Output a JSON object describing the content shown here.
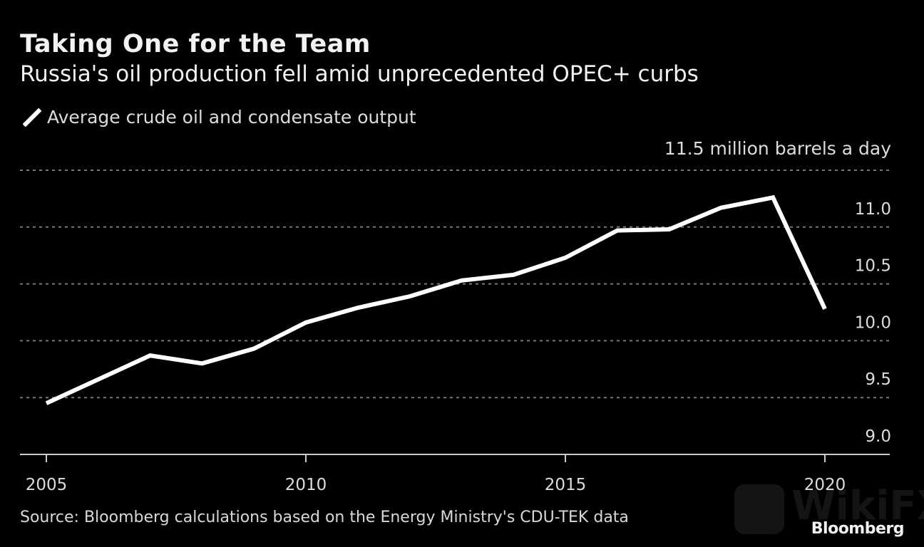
{
  "chart_data": {
    "type": "line",
    "title": "Taking One for the Team",
    "subtitle": "Russia's oil production fell amid unprecedented OPEC+ curbs",
    "legend": [
      {
        "label": "Average crude oil and condensate output",
        "color": "#ffffff"
      }
    ],
    "ylabel": "11.5 million barrels a day",
    "xlabel": "",
    "x": [
      2005,
      2006,
      2007,
      2008,
      2009,
      2010,
      2011,
      2012,
      2013,
      2014,
      2015,
      2016,
      2017,
      2018,
      2019,
      2020
    ],
    "series": [
      {
        "name": "Average crude oil and condensate output",
        "values": [
          9.45,
          9.66,
          9.87,
          9.8,
          9.93,
          10.16,
          10.29,
          10.39,
          10.53,
          10.58,
          10.73,
          10.97,
          10.98,
          11.17,
          11.26,
          10.28
        ]
      }
    ],
    "ylim": [
      9.0,
      11.5
    ],
    "xlim": [
      2004.5,
      2021.3
    ],
    "yticks": [
      {
        "value": 11.5,
        "label": "11.5 million barrels a day"
      },
      {
        "value": 11.0,
        "label": "11.0"
      },
      {
        "value": 10.5,
        "label": "10.5"
      },
      {
        "value": 10.0,
        "label": "10.0"
      },
      {
        "value": 9.5,
        "label": "9.5"
      },
      {
        "value": 9.0,
        "label": "9.0"
      }
    ],
    "xticks": [
      {
        "value": 2005,
        "label": "2005"
      },
      {
        "value": 2010,
        "label": "2010"
      },
      {
        "value": 2015,
        "label": "2015"
      },
      {
        "value": 2020,
        "label": "2020"
      }
    ],
    "grid": "horizontal-dotted",
    "legend_position": "top-left",
    "source": "Source: Bloomberg calculations based on the Energy Ministry's CDU-TEK data",
    "brand": "Bloomberg",
    "watermark": "WikiFX",
    "colors": {
      "background": "#000000",
      "line": "#ffffff",
      "grid": "#777777",
      "text": "#dcdcdc"
    }
  }
}
